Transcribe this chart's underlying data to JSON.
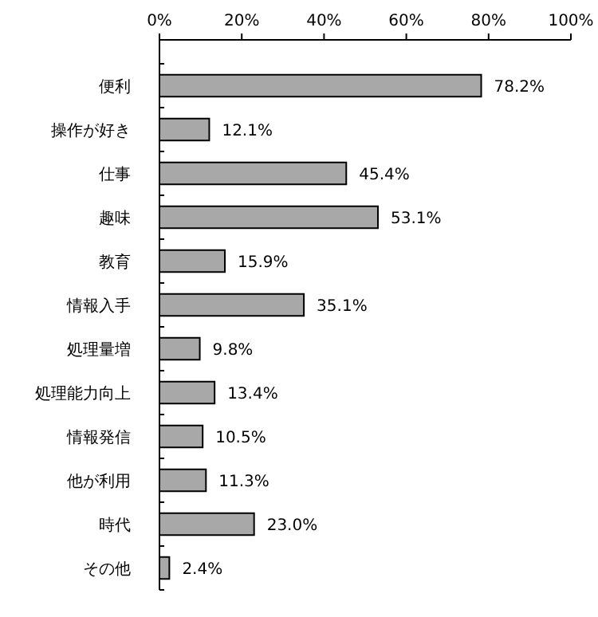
{
  "chart_data": {
    "type": "bar",
    "orientation": "horizontal",
    "categories": [
      "便利",
      "操作が好き",
      "仕事",
      "趣味",
      "教育",
      "情報入手",
      "処理量増",
      "処理能力向上",
      "情報発信",
      "他が利用",
      "時代",
      "その他"
    ],
    "values": [
      78.2,
      12.1,
      45.4,
      53.1,
      15.9,
      35.1,
      9.8,
      13.4,
      10.5,
      11.3,
      23.0,
      2.4
    ],
    "value_labels": [
      "78.2%",
      "12.1%",
      "45.4%",
      "53.1%",
      "15.9%",
      "35.1%",
      "9.8%",
      "13.4%",
      "10.5%",
      "11.3%",
      "23.0%",
      "2.4%"
    ],
    "color": "#a8a8a8",
    "xlim": [
      0,
      100
    ],
    "xticks": [
      {
        "value": 0,
        "label": "0%"
      },
      {
        "value": 20,
        "label": "20%"
      },
      {
        "value": 40,
        "label": "40%"
      },
      {
        "value": 60,
        "label": "60%"
      },
      {
        "value": 80,
        "label": "80%"
      },
      {
        "value": 100,
        "label": "100%"
      }
    ],
    "grid": false
  }
}
